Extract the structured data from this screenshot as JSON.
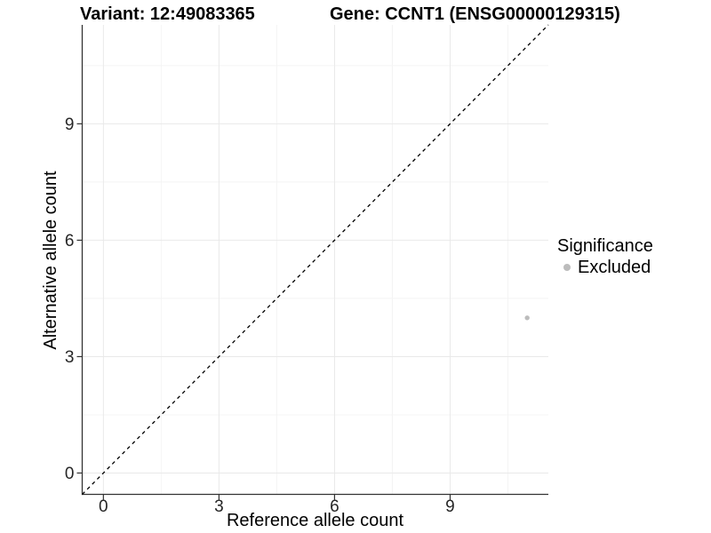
{
  "figure": {
    "background": "#ffffff"
  },
  "header": {
    "variant_title": "Variant: 12:49083365",
    "gene_title": "Gene: CCNT1 (ENSG00000129315)"
  },
  "chart_data": {
    "type": "scatter",
    "xlabel": "Reference allele count",
    "ylabel": "Alternative allele count",
    "xlim": [
      -0.55,
      11.55
    ],
    "ylim": [
      -0.55,
      11.55
    ],
    "x_tick_values": [
      0,
      3,
      6,
      9
    ],
    "x_tick_labels": [
      "0",
      "3",
      "6",
      "9"
    ],
    "y_tick_values": [
      0,
      3,
      6,
      9
    ],
    "y_tick_labels": [
      "0",
      "3",
      "6",
      "9"
    ],
    "minor_tick_values": [
      1.5,
      4.5,
      7.5,
      10.5
    ],
    "grid": {
      "major": true,
      "minor": true
    },
    "reference_line": {
      "type": "identity",
      "style": "dashed",
      "color": "#000000"
    },
    "series": [
      {
        "name": "Excluded",
        "color": "#bcbcbc",
        "marker": "circle",
        "points": [
          {
            "x": 11,
            "y": 4
          }
        ]
      }
    ],
    "legend": {
      "title": "Significance",
      "position": "right",
      "entries": [
        {
          "label": "Excluded",
          "color": "#bcbcbc",
          "marker": "circle"
        }
      ]
    }
  },
  "colors": {
    "grid_major": "#e9e9e9",
    "grid_minor": "#f4f4f4",
    "axis_line": "#333333",
    "axis_text": "#262626",
    "title_text": "#000000"
  }
}
